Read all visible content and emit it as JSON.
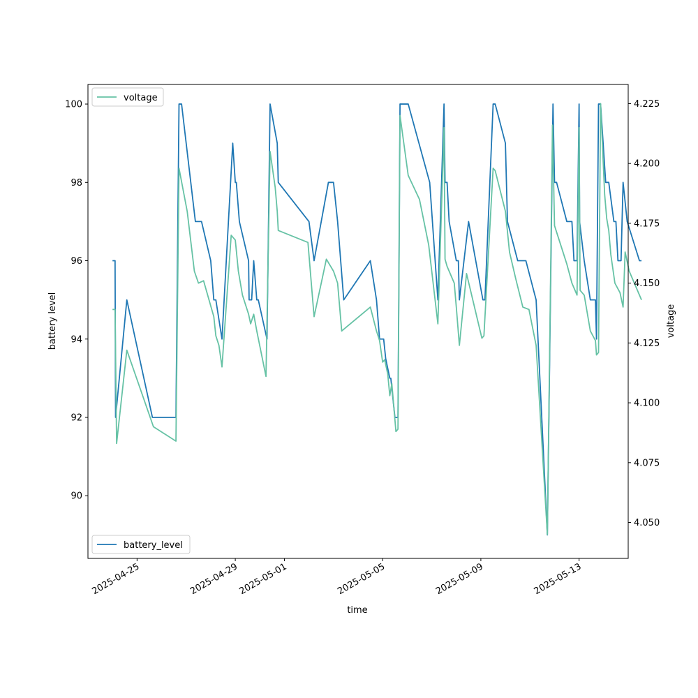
{
  "chart_data": {
    "type": "line",
    "xlabel": "time",
    "ylabel_left": "battery level",
    "ylabel_right": "voltage",
    "x_range": [
      "2025-04-23T00:00",
      "2025-05-15T00:00"
    ],
    "ylim_left": [
      88.4,
      100.5
    ],
    "ylim_right": [
      4.035,
      4.233
    ],
    "grid": false,
    "x_ticks": [
      "2025-04-25",
      "2025-04-29",
      "2025-05-01",
      "2025-05-05",
      "2025-05-09",
      "2025-05-13"
    ],
    "y_ticks_left": [
      90,
      92,
      94,
      96,
      98,
      100
    ],
    "y_ticks_right": [
      4.05,
      4.075,
      4.1,
      4.125,
      4.15,
      4.175,
      4.2,
      4.225
    ],
    "series": [
      {
        "name": "battery_level",
        "axis": "left",
        "color": "#1f77b4",
        "legend_position": "lower-left",
        "points": [
          [
            "2025-04-24T00:00",
            96
          ],
          [
            "2025-04-24T02:30",
            96
          ],
          [
            "2025-04-24T03:00",
            92
          ],
          [
            "2025-04-24T14:00",
            95
          ],
          [
            "2025-04-25T15:00",
            92
          ],
          [
            "2025-04-26T14:00",
            92
          ],
          [
            "2025-04-26T17:00",
            100
          ],
          [
            "2025-04-26T19:30",
            100
          ],
          [
            "2025-04-27T09:00",
            97
          ],
          [
            "2025-04-27T15:00",
            97
          ],
          [
            "2025-04-28T00:00",
            96
          ],
          [
            "2025-04-28T03:00",
            95
          ],
          [
            "2025-04-28T05:00",
            95
          ],
          [
            "2025-04-28T11:00",
            94
          ],
          [
            "2025-04-28T21:30",
            99
          ],
          [
            "2025-04-29T00:00",
            98
          ],
          [
            "2025-04-29T01:00",
            98
          ],
          [
            "2025-04-29T04:00",
            97
          ],
          [
            "2025-04-29T13:00",
            96
          ],
          [
            "2025-04-29T13:30",
            95
          ],
          [
            "2025-04-29T16:00",
            95
          ],
          [
            "2025-04-29T18:00",
            96
          ],
          [
            "2025-04-29T21:00",
            95
          ],
          [
            "2025-04-29T22:30",
            95
          ],
          [
            "2025-04-30T07:00",
            94
          ],
          [
            "2025-04-30T10:00",
            100
          ],
          [
            "2025-04-30T17:00",
            99
          ],
          [
            "2025-04-30T18:00",
            98
          ],
          [
            "2025-05-02T00:00",
            97
          ],
          [
            "2025-05-02T05:00",
            96
          ],
          [
            "2025-05-02T19:00",
            98
          ],
          [
            "2025-05-03T00:00",
            98
          ],
          [
            "2025-05-03T04:00",
            97
          ],
          [
            "2025-05-03T10:00",
            95
          ],
          [
            "2025-05-04T12:00",
            96
          ],
          [
            "2025-05-04T18:00",
            95
          ],
          [
            "2025-05-04T21:00",
            94
          ],
          [
            "2025-05-05T01:00",
            94
          ],
          [
            "2025-05-05T03:00",
            93.5
          ],
          [
            "2025-05-05T07:00",
            93
          ],
          [
            "2025-05-05T08:00",
            93
          ],
          [
            "2025-05-05T12:00",
            92
          ],
          [
            "2025-05-05T15:00",
            92
          ],
          [
            "2025-05-05T17:00",
            100
          ],
          [
            "2025-05-06T01:00",
            100
          ],
          [
            "2025-05-06T22:00",
            98
          ],
          [
            "2025-05-07T06:00",
            95
          ],
          [
            "2025-05-07T12:00",
            100
          ],
          [
            "2025-05-07T13:00",
            98
          ],
          [
            "2025-05-07T15:00",
            98
          ],
          [
            "2025-05-07T17:00",
            97
          ],
          [
            "2025-05-08T00:00",
            96
          ],
          [
            "2025-05-08T02:00",
            96
          ],
          [
            "2025-05-08T03:00",
            95
          ],
          [
            "2025-05-08T12:00",
            97
          ],
          [
            "2025-05-09T02:00",
            95
          ],
          [
            "2025-05-09T04:00",
            95
          ],
          [
            "2025-05-09T12:00",
            100
          ],
          [
            "2025-05-09T14:00",
            100
          ],
          [
            "2025-05-10T00:00",
            99
          ],
          [
            "2025-05-10T02:00",
            97
          ],
          [
            "2025-05-10T12:00",
            96
          ],
          [
            "2025-05-10T20:00",
            96
          ],
          [
            "2025-05-11T06:00",
            95
          ],
          [
            "2025-05-11T17:00",
            89
          ],
          [
            "2025-05-11T22:30",
            100
          ],
          [
            "2025-05-12T00:00",
            98
          ],
          [
            "2025-05-12T02:00",
            98
          ],
          [
            "2025-05-12T12:00",
            97
          ],
          [
            "2025-05-12T17:00",
            97
          ],
          [
            "2025-05-12T19:00",
            96
          ],
          [
            "2025-05-12T22:00",
            96
          ],
          [
            "2025-05-13T00:00",
            100
          ],
          [
            "2025-05-13T00:30",
            97
          ],
          [
            "2025-05-13T05:00",
            96
          ],
          [
            "2025-05-13T11:00",
            95
          ],
          [
            "2025-05-13T13:00",
            95
          ],
          [
            "2025-05-13T16:00",
            95
          ],
          [
            "2025-05-13T17:00",
            94
          ],
          [
            "2025-05-13T19:00",
            100
          ],
          [
            "2025-05-13T21:00",
            100
          ],
          [
            "2025-05-14T02:00",
            98
          ],
          [
            "2025-05-14T05:00",
            98
          ],
          [
            "2025-05-14T10:00",
            97
          ],
          [
            "2025-05-14T12:00",
            97
          ],
          [
            "2025-05-14T14:00",
            96
          ],
          [
            "2025-05-14T17:00",
            96
          ],
          [
            "2025-05-14T19:00",
            98
          ],
          [
            "2025-05-14T23:00",
            97
          ],
          [
            "2025-05-15T11:00",
            96
          ],
          [
            "2025-05-15T13:00",
            96
          ]
        ]
      },
      {
        "name": "voltage",
        "axis": "right",
        "color": "#66c2a5",
        "legend_position": "upper-left",
        "points": [
          [
            "2025-04-24T00:00",
            4.139
          ],
          [
            "2025-04-24T02:30",
            4.139
          ],
          [
            "2025-04-24T04:00",
            4.083
          ],
          [
            "2025-04-24T14:00",
            4.122
          ],
          [
            "2025-04-25T16:00",
            4.09
          ],
          [
            "2025-04-26T14:00",
            4.084
          ],
          [
            "2025-04-26T17:00",
            4.198
          ],
          [
            "2025-04-27T01:00",
            4.18
          ],
          [
            "2025-04-27T08:00",
            4.155
          ],
          [
            "2025-04-27T12:00",
            4.15
          ],
          [
            "2025-04-27T17:00",
            4.151
          ],
          [
            "2025-04-28T03:00",
            4.136
          ],
          [
            "2025-04-28T05:00",
            4.128
          ],
          [
            "2025-04-28T08:00",
            4.124
          ],
          [
            "2025-04-28T11:00",
            4.115
          ],
          [
            "2025-04-28T20:00",
            4.17
          ],
          [
            "2025-04-29T00:00",
            4.168
          ],
          [
            "2025-04-29T03:00",
            4.155
          ],
          [
            "2025-04-29T07:00",
            4.145
          ],
          [
            "2025-04-29T13:00",
            4.137
          ],
          [
            "2025-04-29T15:00",
            4.133
          ],
          [
            "2025-04-29T18:00",
            4.137
          ],
          [
            "2025-04-29T21:00",
            4.13
          ],
          [
            "2025-04-30T06:00",
            4.111
          ],
          [
            "2025-04-30T10:00",
            4.205
          ],
          [
            "2025-04-30T15:00",
            4.19
          ],
          [
            "2025-04-30T17:00",
            4.18
          ],
          [
            "2025-04-30T18:00",
            4.172
          ],
          [
            "2025-05-01T23:00",
            4.167
          ],
          [
            "2025-05-02T05:00",
            4.136
          ],
          [
            "2025-05-02T17:00",
            4.16
          ],
          [
            "2025-05-03T00:00",
            4.155
          ],
          [
            "2025-05-03T04:00",
            4.15
          ],
          [
            "2025-05-03T08:00",
            4.13
          ],
          [
            "2025-05-04T12:00",
            4.14
          ],
          [
            "2025-05-04T18:00",
            4.13
          ],
          [
            "2025-05-04T21:00",
            4.126
          ],
          [
            "2025-05-05T00:00",
            4.117
          ],
          [
            "2025-05-05T02:00",
            4.118
          ],
          [
            "2025-05-05T05:00",
            4.112
          ],
          [
            "2025-05-05T07:00",
            4.103
          ],
          [
            "2025-05-05T09:00",
            4.108
          ],
          [
            "2025-05-05T13:00",
            4.088
          ],
          [
            "2025-05-05T15:00",
            4.089
          ],
          [
            "2025-05-05T17:00",
            4.22
          ],
          [
            "2025-05-06T01:00",
            4.195
          ],
          [
            "2025-05-06T12:00",
            4.185
          ],
          [
            "2025-05-06T21:00",
            4.166
          ],
          [
            "2025-05-07T06:00",
            4.133
          ],
          [
            "2025-05-07T12:00",
            4.215
          ],
          [
            "2025-05-07T13:00",
            4.16
          ],
          [
            "2025-05-07T15:00",
            4.157
          ],
          [
            "2025-05-07T22:00",
            4.15
          ],
          [
            "2025-05-08T00:00",
            4.14
          ],
          [
            "2025-05-08T03:00",
            4.124
          ],
          [
            "2025-05-08T10:00",
            4.154
          ],
          [
            "2025-05-09T01:00",
            4.127
          ],
          [
            "2025-05-09T03:00",
            4.128
          ],
          [
            "2025-05-09T12:00",
            4.198
          ],
          [
            "2025-05-09T14:00",
            4.197
          ],
          [
            "2025-05-10T00:00",
            4.18
          ],
          [
            "2025-05-10T04:00",
            4.163
          ],
          [
            "2025-05-10T10:00",
            4.152
          ],
          [
            "2025-05-10T17:00",
            4.14
          ],
          [
            "2025-05-10T23:00",
            4.139
          ],
          [
            "2025-05-11T06:00",
            4.124
          ],
          [
            "2025-05-11T17:00",
            4.045
          ],
          [
            "2025-05-11T22:00",
            4.216
          ],
          [
            "2025-05-12T00:00",
            4.174
          ],
          [
            "2025-05-12T12:00",
            4.158
          ],
          [
            "2025-05-12T17:00",
            4.15
          ],
          [
            "2025-05-12T22:00",
            4.145
          ],
          [
            "2025-05-13T00:00",
            4.215
          ],
          [
            "2025-05-13T01:00",
            4.147
          ],
          [
            "2025-05-13T05:00",
            4.145
          ],
          [
            "2025-05-13T11:00",
            4.13
          ],
          [
            "2025-05-13T16:00",
            4.126
          ],
          [
            "2025-05-13T17:00",
            4.12
          ],
          [
            "2025-05-13T19:00",
            4.121
          ],
          [
            "2025-05-13T21:00",
            4.225
          ],
          [
            "2025-05-14T01:00",
            4.187
          ],
          [
            "2025-05-14T03:00",
            4.177
          ],
          [
            "2025-05-14T05:00",
            4.172
          ],
          [
            "2025-05-14T07:00",
            4.162
          ],
          [
            "2025-05-14T11:00",
            4.15
          ],
          [
            "2025-05-14T16:00",
            4.146
          ],
          [
            "2025-05-14T19:00",
            4.14
          ],
          [
            "2025-05-14T21:00",
            4.163
          ],
          [
            "2025-05-15T01:00",
            4.155
          ],
          [
            "2025-05-15T13:00",
            4.143
          ]
        ]
      }
    ]
  }
}
